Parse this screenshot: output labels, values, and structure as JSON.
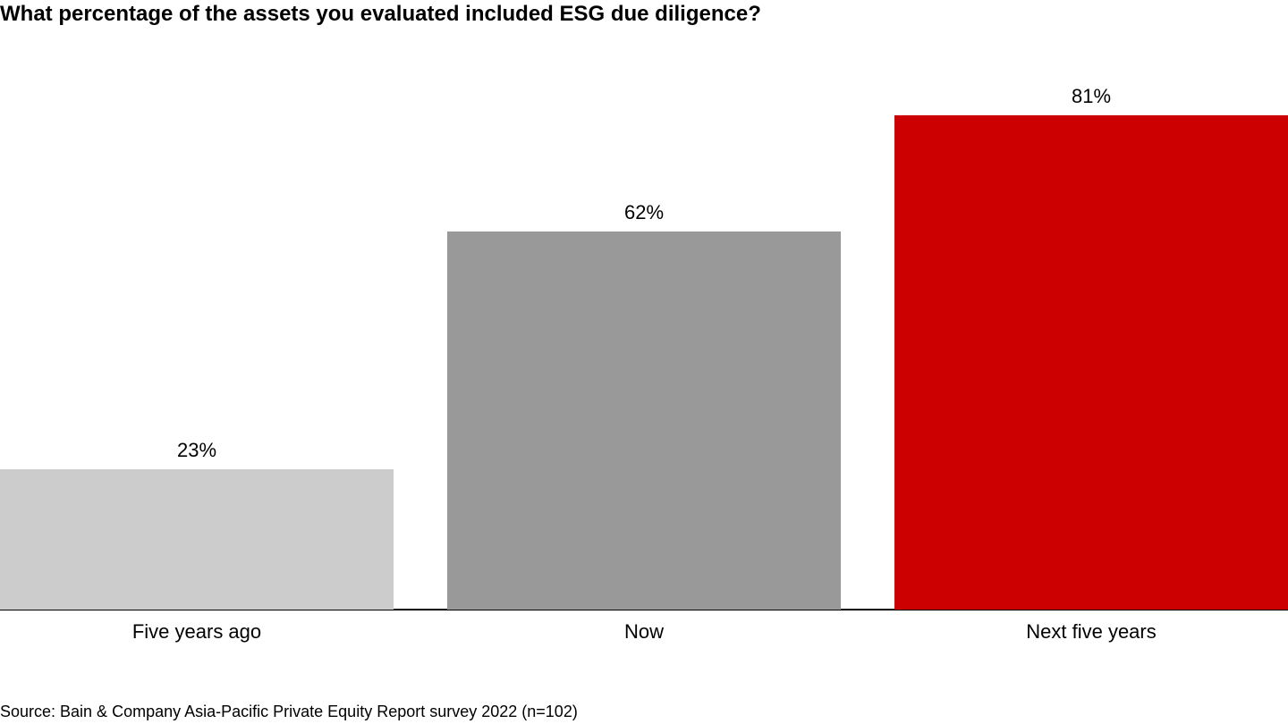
{
  "chart_data": {
    "type": "bar",
    "title": "What percentage of the assets you evaluated included ESG due diligence?",
    "categories": [
      "Five years ago",
      "Now",
      "Next five years"
    ],
    "values": [
      23,
      62,
      81
    ],
    "value_labels": [
      "23%",
      "62%",
      "81%"
    ],
    "colors": [
      "#cccccc",
      "#999999",
      "#cc0000"
    ],
    "xlabel": "",
    "ylabel": "",
    "ylim": [
      0,
      100
    ],
    "grid": false,
    "legend": false
  },
  "source": "Source: Bain & Company Asia-Pacific Private Equity Report survey 2022 (n=102)"
}
